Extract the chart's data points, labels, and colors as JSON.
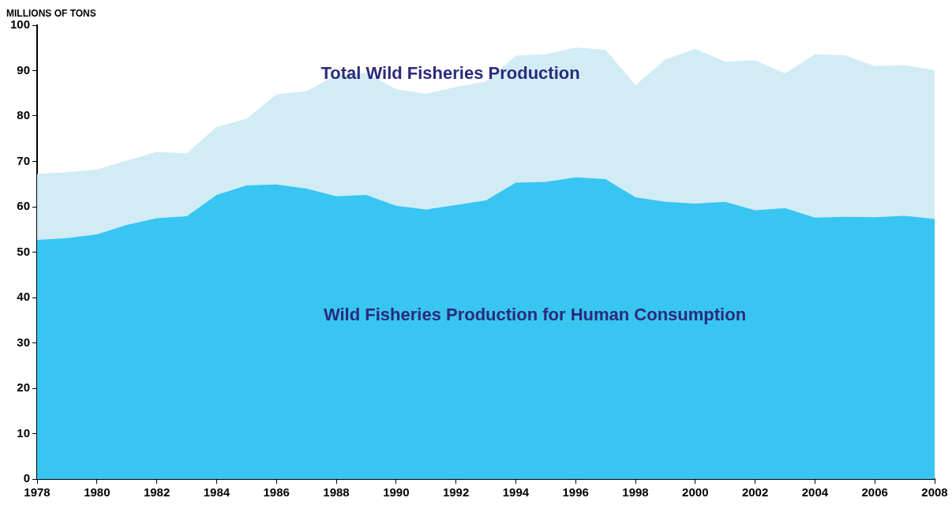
{
  "chart_data": {
    "type": "area",
    "ylabel": "MILLIONS OF TONS",
    "x": [
      1978,
      1979,
      1980,
      1981,
      1982,
      1983,
      1984,
      1985,
      1986,
      1987,
      1988,
      1989,
      1990,
      1991,
      1992,
      1993,
      1994,
      1995,
      1996,
      1997,
      1998,
      1999,
      2000,
      2001,
      2002,
      2003,
      2004,
      2005,
      2006,
      2007,
      2008
    ],
    "series": [
      {
        "name": "Total Wild Fisheries Production",
        "color": "#d2ecf5",
        "values": [
          67.2,
          67.6,
          68.2,
          70.2,
          72.1,
          71.8,
          77.6,
          79.4,
          84.8,
          85.5,
          89.0,
          89.5,
          85.9,
          84.9,
          86.4,
          87.6,
          93.3,
          93.6,
          95.1,
          94.6,
          86.8,
          92.5,
          94.8,
          92.0,
          92.3,
          89.4,
          93.6,
          93.4,
          91.0,
          91.2,
          90.1
        ]
      },
      {
        "name": "Wild Fisheries Production for Human Consumption",
        "color": "#38c5f2",
        "values": [
          52.7,
          53.1,
          53.9,
          56.0,
          57.5,
          57.9,
          62.6,
          64.7,
          64.9,
          64.0,
          62.3,
          62.6,
          60.2,
          59.4,
          60.4,
          61.4,
          65.3,
          65.5,
          66.5,
          66.1,
          62.1,
          61.1,
          60.7,
          61.1,
          59.2,
          59.7,
          57.6,
          57.8,
          57.7,
          58.0,
          57.3
        ]
      }
    ],
    "xlim": [
      1978,
      2008
    ],
    "xticks": [
      1978,
      1980,
      1982,
      1984,
      1986,
      1988,
      1990,
      1992,
      1994,
      1996,
      1998,
      2000,
      2002,
      2004,
      2006,
      2008
    ],
    "ylim": [
      0,
      100
    ],
    "yticks": [
      0,
      10,
      20,
      30,
      40,
      50,
      60,
      70,
      80,
      90,
      100
    ],
    "grid": false,
    "legend": false
  }
}
